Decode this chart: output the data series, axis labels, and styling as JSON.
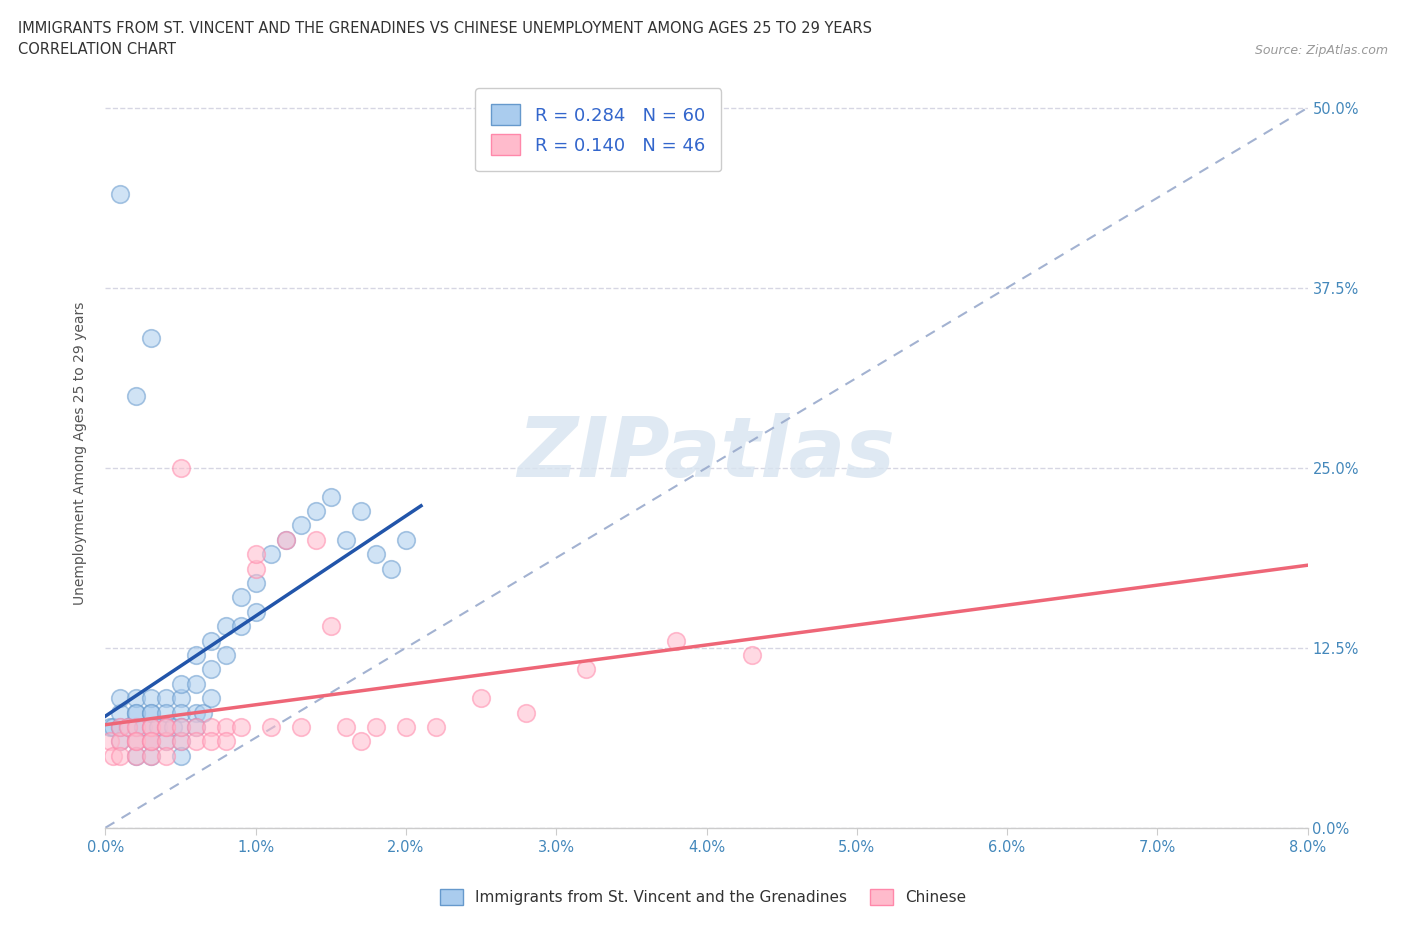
{
  "title1": "IMMIGRANTS FROM ST. VINCENT AND THE GRENADINES VS CHINESE UNEMPLOYMENT AMONG AGES 25 TO 29 YEARS",
  "title2": "CORRELATION CHART",
  "source": "Source: ZipAtlas.com",
  "ylabel": "Unemployment Among Ages 25 to 29 years",
  "blue_label": "Immigrants from St. Vincent and the Grenadines",
  "pink_label": "Chinese",
  "R_blue": "0.284",
  "N_blue": "60",
  "R_pink": "0.140",
  "N_pink": "46",
  "blue_face": "#AACCEE",
  "blue_edge": "#6699CC",
  "pink_face": "#FFBBCC",
  "pink_edge": "#FF88AA",
  "blue_line": "#2255AA",
  "pink_line": "#EE6677",
  "ref_line_color": "#99AACC",
  "watermark_color": "#D8E4F0",
  "watermark_text": "ZIPatlas",
  "legend_blue_face": "#AACCEE",
  "legend_pink_face": "#FFBBCC",
  "ytick_vals": [
    0.0,
    0.125,
    0.25,
    0.375,
    0.5
  ],
  "ytick_labels": [
    "0.0%",
    "12.5%",
    "25.0%",
    "37.5%",
    "50.0%"
  ],
  "xtick_vals": [
    0.0,
    0.01,
    0.02,
    0.03,
    0.04,
    0.05,
    0.06,
    0.07,
    0.08
  ],
  "xtick_labels": [
    "0.0%",
    "1.0%",
    "2.0%",
    "3.0%",
    "4.0%",
    "5.0%",
    "6.0%",
    "7.0%",
    "8.0%"
  ],
  "xlim": [
    0.0,
    0.08
  ],
  "ylim": [
    0.0,
    0.52
  ],
  "blue_x": [
    0.0003,
    0.0005,
    0.001,
    0.001,
    0.001,
    0.001,
    0.0015,
    0.002,
    0.002,
    0.002,
    0.002,
    0.002,
    0.002,
    0.0025,
    0.003,
    0.003,
    0.003,
    0.003,
    0.003,
    0.003,
    0.003,
    0.0035,
    0.004,
    0.004,
    0.004,
    0.004,
    0.0045,
    0.005,
    0.005,
    0.005,
    0.005,
    0.005,
    0.005,
    0.006,
    0.006,
    0.006,
    0.006,
    0.0065,
    0.007,
    0.007,
    0.007,
    0.008,
    0.008,
    0.009,
    0.009,
    0.01,
    0.01,
    0.011,
    0.012,
    0.013,
    0.014,
    0.015,
    0.016,
    0.017,
    0.018,
    0.019,
    0.02,
    0.001,
    0.002,
    0.003
  ],
  "blue_y": [
    0.07,
    0.07,
    0.07,
    0.08,
    0.09,
    0.06,
    0.07,
    0.07,
    0.08,
    0.09,
    0.06,
    0.05,
    0.08,
    0.07,
    0.08,
    0.09,
    0.06,
    0.07,
    0.05,
    0.08,
    0.06,
    0.07,
    0.09,
    0.07,
    0.08,
    0.06,
    0.07,
    0.09,
    0.08,
    0.07,
    0.1,
    0.06,
    0.05,
    0.12,
    0.1,
    0.08,
    0.07,
    0.08,
    0.13,
    0.11,
    0.09,
    0.14,
    0.12,
    0.16,
    0.14,
    0.17,
    0.15,
    0.19,
    0.2,
    0.21,
    0.22,
    0.23,
    0.2,
    0.22,
    0.19,
    0.18,
    0.2,
    0.44,
    0.3,
    0.34
  ],
  "pink_x": [
    0.0003,
    0.0005,
    0.001,
    0.001,
    0.001,
    0.0015,
    0.002,
    0.002,
    0.002,
    0.002,
    0.003,
    0.003,
    0.003,
    0.003,
    0.003,
    0.004,
    0.004,
    0.004,
    0.004,
    0.005,
    0.005,
    0.005,
    0.006,
    0.006,
    0.007,
    0.007,
    0.008,
    0.008,
    0.009,
    0.01,
    0.01,
    0.011,
    0.012,
    0.013,
    0.014,
    0.015,
    0.016,
    0.017,
    0.018,
    0.02,
    0.022,
    0.025,
    0.028,
    0.032,
    0.038,
    0.043
  ],
  "pink_y": [
    0.06,
    0.05,
    0.06,
    0.07,
    0.05,
    0.07,
    0.06,
    0.07,
    0.05,
    0.06,
    0.07,
    0.06,
    0.05,
    0.07,
    0.06,
    0.07,
    0.06,
    0.05,
    0.07,
    0.06,
    0.07,
    0.25,
    0.07,
    0.06,
    0.07,
    0.06,
    0.07,
    0.06,
    0.07,
    0.18,
    0.19,
    0.07,
    0.2,
    0.07,
    0.2,
    0.14,
    0.07,
    0.06,
    0.07,
    0.07,
    0.07,
    0.09,
    0.08,
    0.11,
    0.13,
    0.12
  ]
}
